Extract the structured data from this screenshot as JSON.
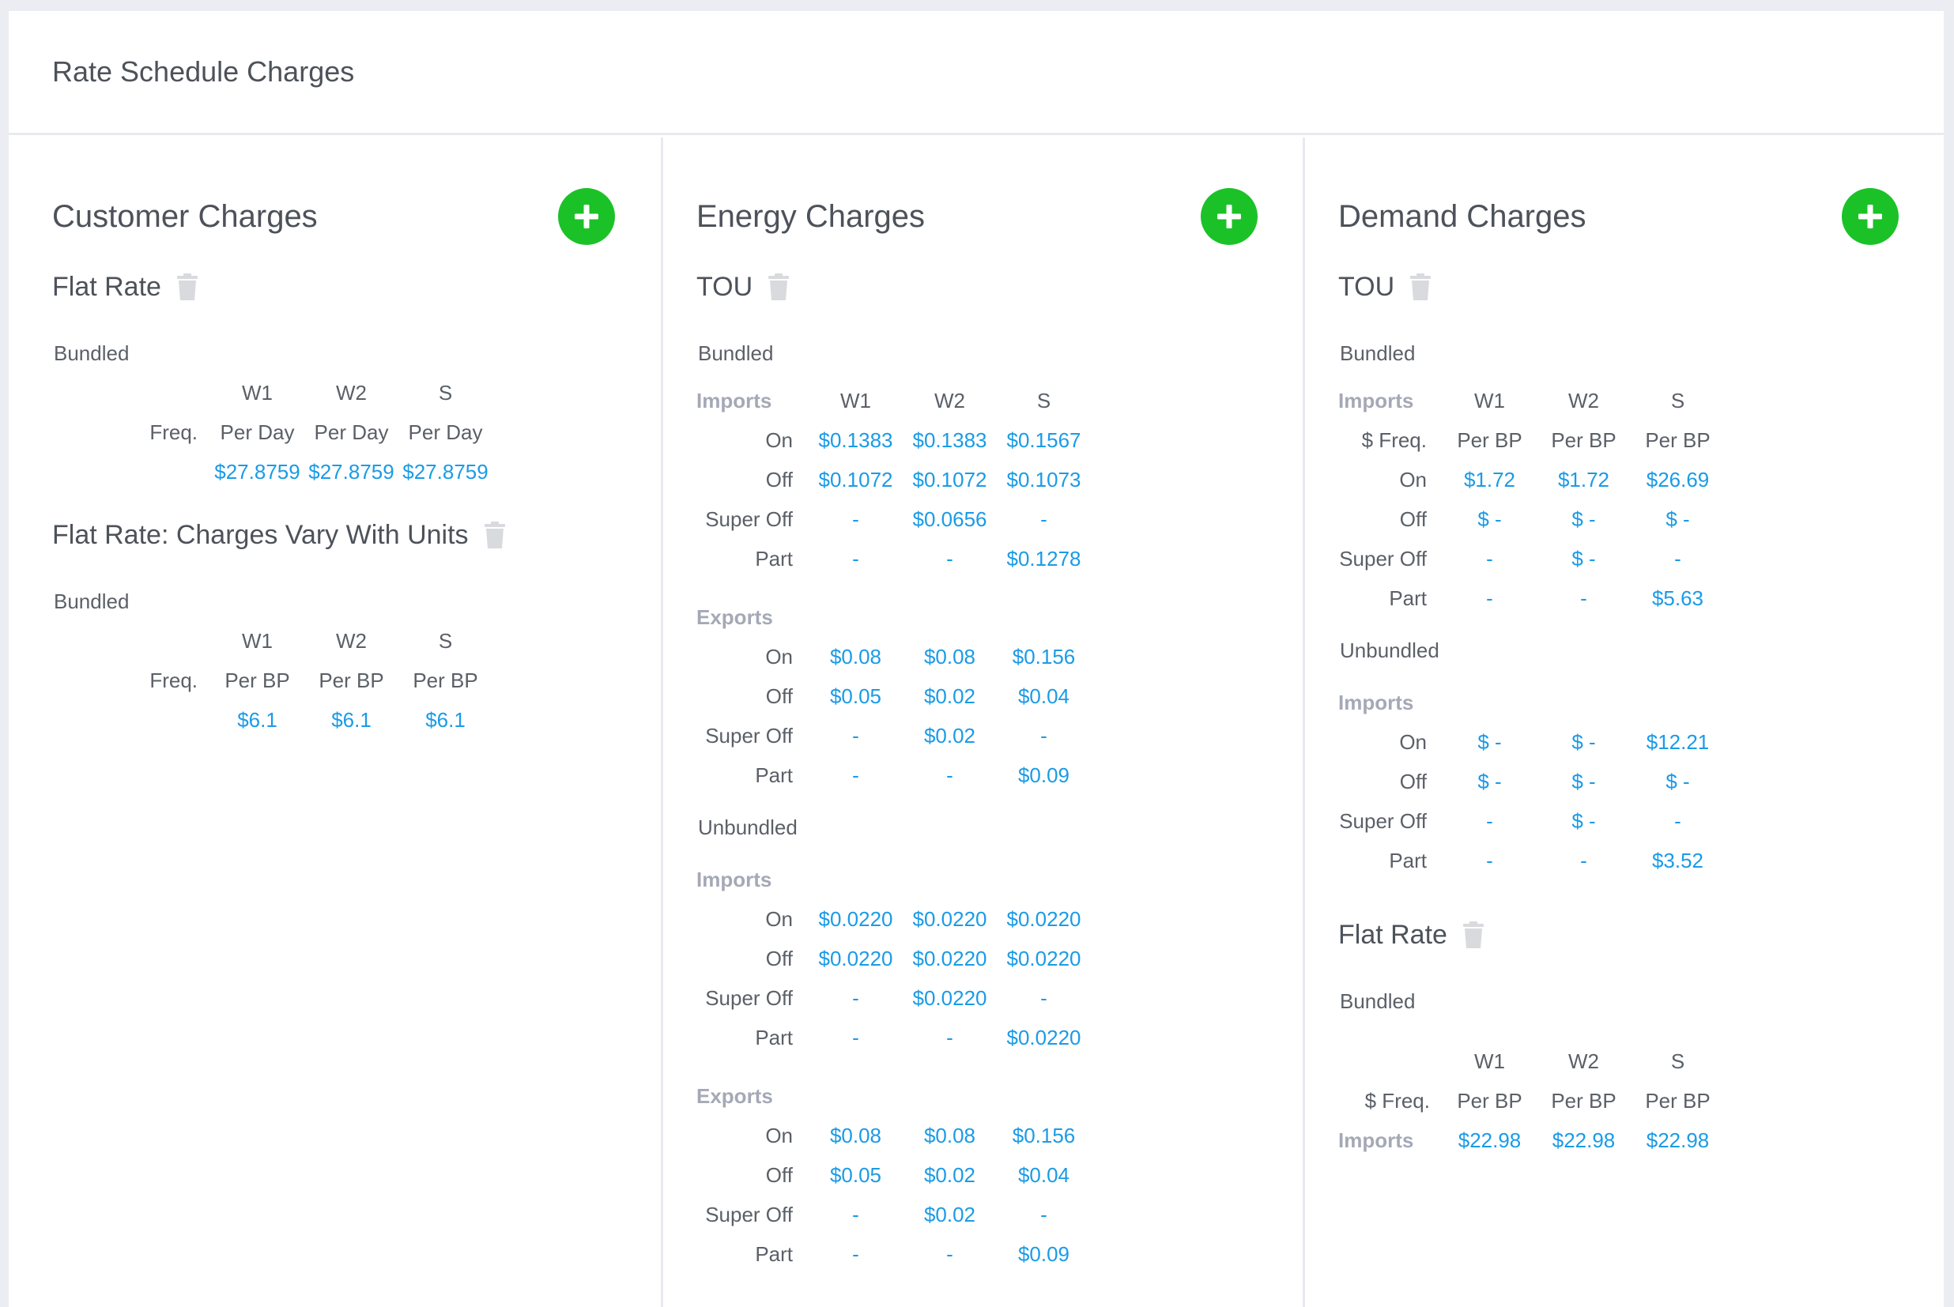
{
  "page": {
    "title": "Rate Schedule Charges"
  },
  "customer": {
    "title": "Customer Charges",
    "flat_rate": {
      "title": "Flat Rate",
      "group": "Bundled",
      "headers": [
        "W1",
        "W2",
        "S"
      ],
      "freq_label": "Freq.",
      "freq": [
        "Per Day",
        "Per Day",
        "Per Day"
      ],
      "values": [
        "$27.8759",
        "$27.8759",
        "$27.8759"
      ]
    },
    "flat_rate_units": {
      "title": "Flat Rate: Charges Vary With Units",
      "group": "Bundled",
      "headers": [
        "W1",
        "W2",
        "S"
      ],
      "freq_label": "Freq.",
      "freq": [
        "Per BP",
        "Per BP",
        "Per BP"
      ],
      "values": [
        "$6.1",
        "$6.1",
        "$6.1"
      ]
    }
  },
  "energy": {
    "title": "Energy Charges",
    "tou": {
      "title": "TOU",
      "bundled": {
        "label": "Bundled",
        "imports": {
          "label": "Imports",
          "headers": [
            "W1",
            "W2",
            "S"
          ],
          "rows": [
            {
              "label": "On",
              "values": [
                "$0.1383",
                "$0.1383",
                "$0.1567"
              ]
            },
            {
              "label": "Off",
              "values": [
                "$0.1072",
                "$0.1072",
                "$0.1073"
              ]
            },
            {
              "label": "Super Off",
              "values": [
                "-",
                "$0.0656",
                "-"
              ]
            },
            {
              "label": "Part",
              "values": [
                "-",
                "-",
                "$0.1278"
              ]
            }
          ]
        },
        "exports": {
          "label": "Exports",
          "rows": [
            {
              "label": "On",
              "values": [
                "$0.08",
                "$0.08",
                "$0.156"
              ]
            },
            {
              "label": "Off",
              "values": [
                "$0.05",
                "$0.02",
                "$0.04"
              ]
            },
            {
              "label": "Super Off",
              "values": [
                "-",
                "$0.02",
                "-"
              ]
            },
            {
              "label": "Part",
              "values": [
                "-",
                "-",
                "$0.09"
              ]
            }
          ]
        }
      },
      "unbundled": {
        "label": "Unbundled",
        "imports": {
          "label": "Imports",
          "rows": [
            {
              "label": "On",
              "values": [
                "$0.0220",
                "$0.0220",
                "$0.0220"
              ]
            },
            {
              "label": "Off",
              "values": [
                "$0.0220",
                "$0.0220",
                "$0.0220"
              ]
            },
            {
              "label": "Super Off",
              "values": [
                "-",
                "$0.0220",
                "-"
              ]
            },
            {
              "label": "Part",
              "values": [
                "-",
                "-",
                "$0.0220"
              ]
            }
          ]
        },
        "exports": {
          "label": "Exports",
          "rows": [
            {
              "label": "On",
              "values": [
                "$0.08",
                "$0.08",
                "$0.156"
              ]
            },
            {
              "label": "Off",
              "values": [
                "$0.05",
                "$0.02",
                "$0.04"
              ]
            },
            {
              "label": "Super Off",
              "values": [
                "-",
                "$0.02",
                "-"
              ]
            },
            {
              "label": "Part",
              "values": [
                "-",
                "-",
                "$0.09"
              ]
            }
          ]
        }
      }
    }
  },
  "demand": {
    "title": "Demand Charges",
    "tou": {
      "title": "TOU",
      "bundled": {
        "label": "Bundled",
        "imports": {
          "label": "Imports",
          "headers": [
            "W1",
            "W2",
            "S"
          ],
          "freq_label": "$ Freq.",
          "freq": [
            "Per BP",
            "Per BP",
            "Per BP"
          ],
          "rows": [
            {
              "label": "On",
              "values": [
                "$1.72",
                "$1.72",
                "$26.69"
              ]
            },
            {
              "label": "Off",
              "values": [
                "$ -",
                "$ -",
                "$ -"
              ]
            },
            {
              "label": "Super Off",
              "values": [
                "-",
                "$ -",
                "-"
              ]
            },
            {
              "label": "Part",
              "values": [
                "-",
                "-",
                "$5.63"
              ]
            }
          ]
        }
      },
      "unbundled": {
        "label": "Unbundled",
        "imports": {
          "label": "Imports",
          "rows": [
            {
              "label": "On",
              "values": [
                "$ -",
                "$ -",
                "$12.21"
              ]
            },
            {
              "label": "Off",
              "values": [
                "$ -",
                "$ -",
                "$ -"
              ]
            },
            {
              "label": "Super Off",
              "values": [
                "-",
                "$ -",
                "-"
              ]
            },
            {
              "label": "Part",
              "values": [
                "-",
                "-",
                "$3.52"
              ]
            }
          ]
        }
      }
    },
    "flat_rate": {
      "title": "Flat Rate",
      "group": "Bundled",
      "headers": [
        "W1",
        "W2",
        "S"
      ],
      "freq_label": "$ Freq.",
      "freq": [
        "Per BP",
        "Per BP",
        "Per BP"
      ],
      "row_label": "Imports",
      "values": [
        "$22.98",
        "$22.98",
        "$22.98"
      ]
    }
  },
  "icons": {
    "add": "plus-icon",
    "delete": "trash-icon"
  },
  "colors": {
    "add_button": "#1bc227",
    "value_text": "#1a9be6",
    "sublabel": "#a5a9b6"
  }
}
